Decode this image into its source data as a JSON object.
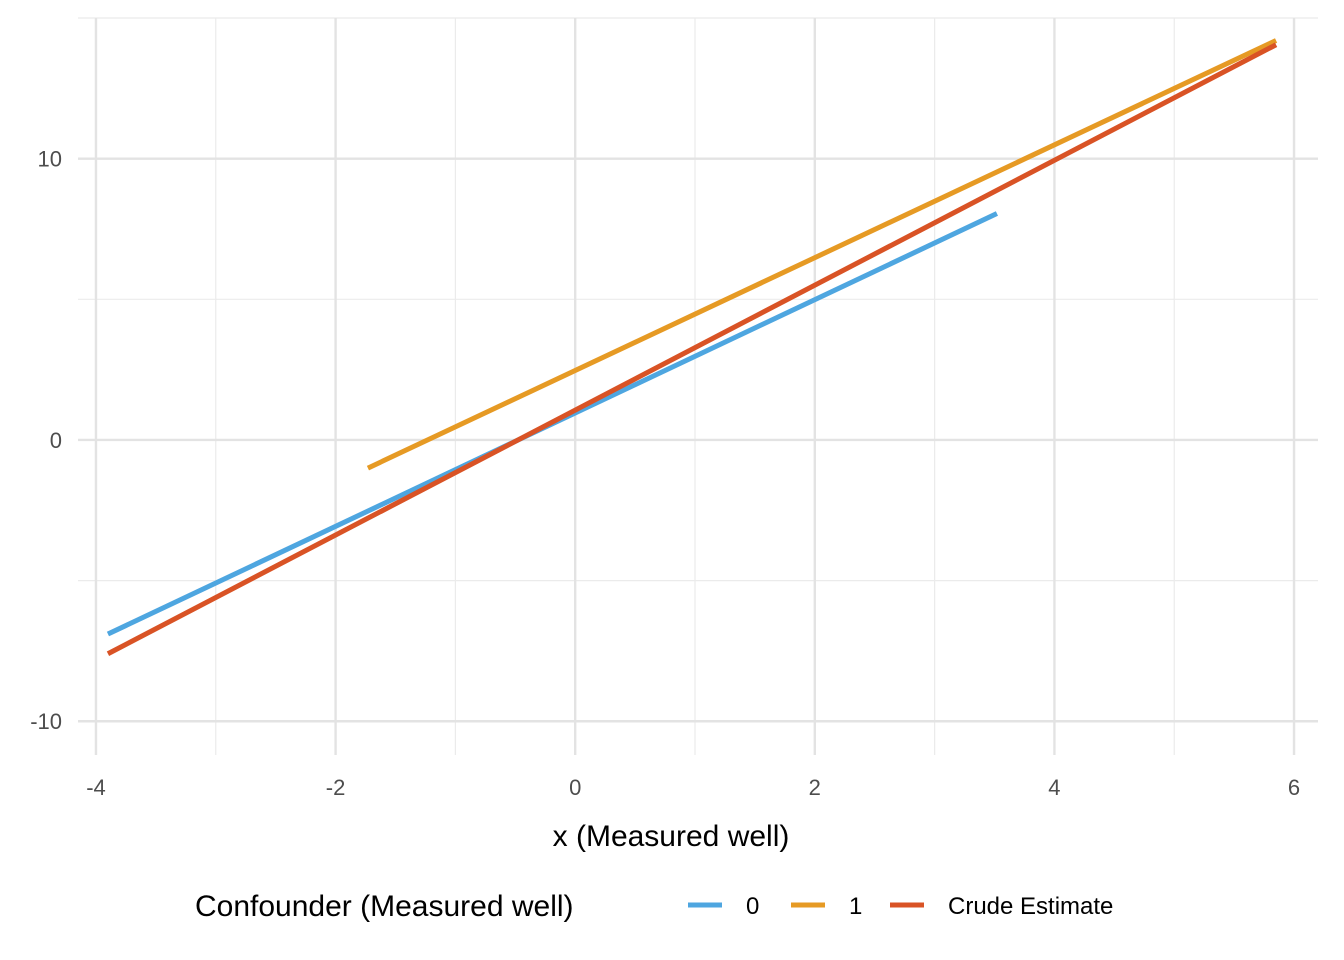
{
  "chart_data": {
    "type": "line",
    "title": "",
    "xlabel": "x (Measured well)",
    "ylabel": "",
    "xlim": [
      -4.15,
      6.2
    ],
    "ylim": [
      -11.2,
      15.0
    ],
    "x_ticks": [
      -4,
      -2,
      0,
      2,
      4,
      6
    ],
    "y_ticks": [
      -10,
      0,
      10
    ],
    "grid": true,
    "legend": {
      "title": "Confounder (Measured well)",
      "placement": "bottom"
    },
    "series": [
      {
        "name": "0",
        "color": "#4ea6e0",
        "x": [
          -3.9,
          3.52
        ],
        "y": [
          -6.9,
          8.05
        ]
      },
      {
        "name": "1",
        "color": "#e69a24",
        "x": [
          -1.73,
          5.85
        ],
        "y": [
          -1.0,
          14.2
        ]
      },
      {
        "name": "Crude Estimate",
        "color": "#d95325",
        "x": [
          -3.9,
          5.85
        ],
        "y": [
          -7.6,
          14.05
        ]
      }
    ]
  }
}
